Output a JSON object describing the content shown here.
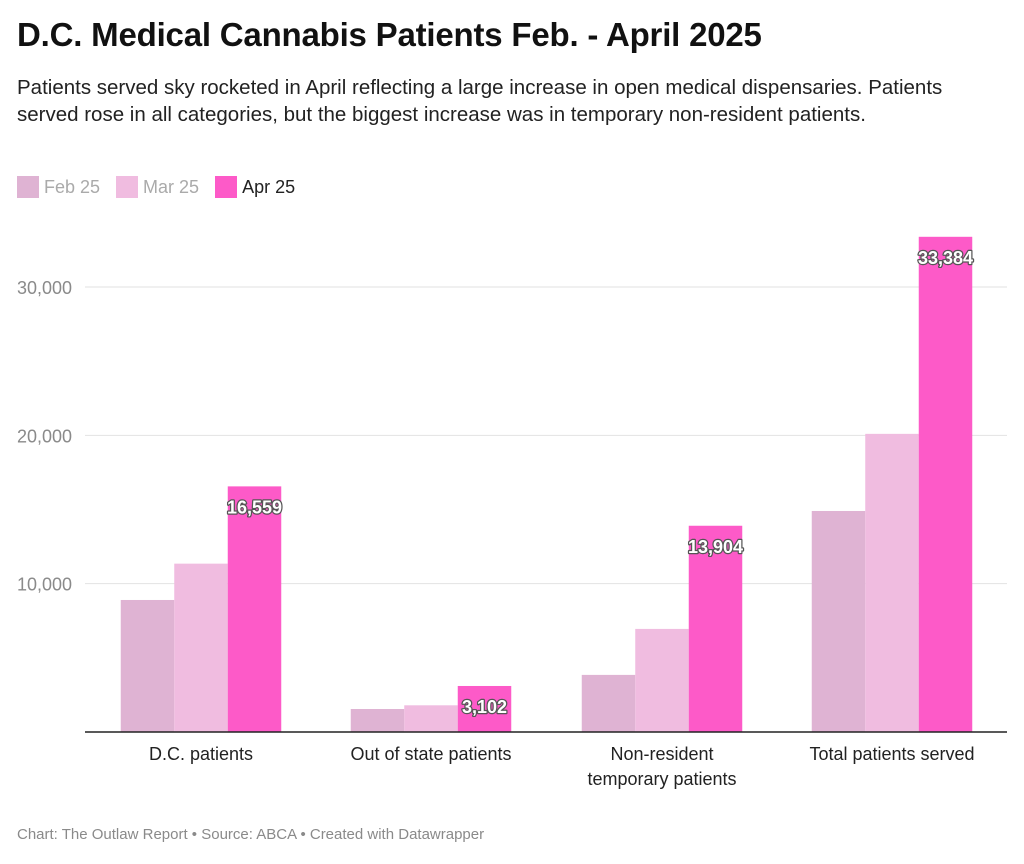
{
  "title": "D.C. Medical Cannabis Patients Feb. - April 2025",
  "subtitle": "Patients served sky rocketed in April reflecting a large increase in open medical dispensaries. Patients served rose in all categories, but the biggest increase was in temporary non-resident patients.",
  "footer": "Chart: The Outlaw Report • Source: ABCA • Created with Datawrapper",
  "colors": {
    "feb": "#dfb3d3",
    "mar": "#f0bce0",
    "apr": "#fd5ac8",
    "grid": "#e2e2e2",
    "axis": "#222222"
  },
  "chart_data": {
    "type": "bar",
    "categories": [
      [
        "D.C. patients"
      ],
      [
        "Out of state patients"
      ],
      [
        "Non-resident",
        "temporary patients"
      ],
      [
        "Total patients served"
      ]
    ],
    "series": [
      {
        "name": "Feb 25",
        "values": [
          8900,
          1550,
          3850,
          14900
        ]
      },
      {
        "name": "Mar 25",
        "values": [
          11350,
          1800,
          6950,
          20100
        ]
      },
      {
        "name": "Apr 25",
        "values": [
          16559,
          3102,
          13904,
          33384
        ]
      }
    ],
    "data_labels": [
      "16,559",
      "3,102",
      "13,904",
      "33,384"
    ],
    "yticks": [
      "10,000",
      "20,000",
      "30,000"
    ],
    "ytick_values": [
      10000,
      20000,
      30000
    ],
    "ylim": [
      0,
      35000
    ],
    "grid": true,
    "legend": "top-left"
  }
}
